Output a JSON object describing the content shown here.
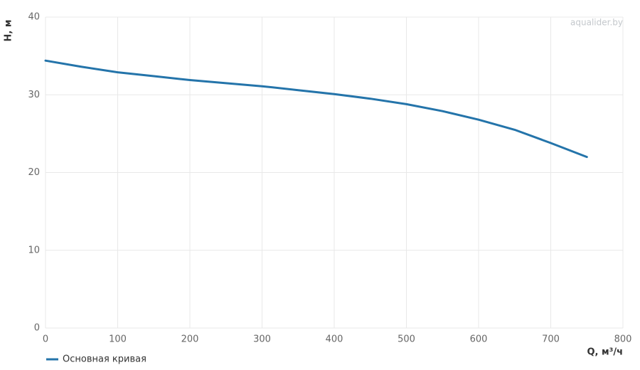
{
  "chart_data": {
    "type": "line",
    "watermark": "aqualider.by",
    "x_label": "Q, м³/ч",
    "y_label": "H, м",
    "x": [
      0,
      50,
      100,
      150,
      200,
      250,
      300,
      350,
      400,
      450,
      500,
      550,
      600,
      650,
      700,
      750
    ],
    "series": [
      {
        "name": "Основная кривая",
        "color": "#2474aa",
        "values": [
          34.4,
          33.6,
          32.9,
          32.4,
          31.9,
          31.5,
          31.1,
          30.6,
          30.1,
          29.5,
          28.8,
          27.9,
          26.8,
          25.5,
          23.8,
          22.0
        ]
      }
    ],
    "xlim": [
      0,
      800
    ],
    "xticks": [
      0,
      100,
      200,
      300,
      400,
      500,
      600,
      700,
      800
    ],
    "ylim": [
      0,
      40
    ],
    "yticks": [
      0,
      10,
      20,
      30,
      40
    ],
    "grid": true,
    "legend": "bottom-left"
  }
}
